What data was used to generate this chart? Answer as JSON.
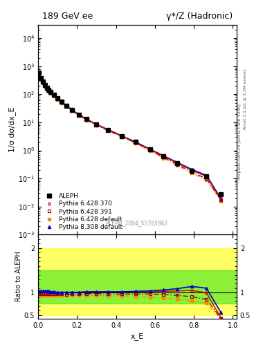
{
  "title_left": "189 GeV ee",
  "title_right": "γ*/Z (Hadronic)",
  "ylabel_main": "1/σ dσ/dx_E",
  "ylabel_ratio": "Ratio to ALEPH",
  "xlabel": "x_E",
  "watermark": "ALEPH_2004_S5765862",
  "right_label_top": "Rivet 3.1.10, ≥ 3.3M events",
  "right_label_bot": "mcplots.cern.ch [arXiv:1306.3436]",
  "xE_data": [
    0.005,
    0.015,
    0.025,
    0.035,
    0.045,
    0.055,
    0.065,
    0.08,
    0.1,
    0.12,
    0.145,
    0.175,
    0.21,
    0.25,
    0.3,
    0.36,
    0.43,
    0.5,
    0.575,
    0.645,
    0.715,
    0.79,
    0.865,
    0.94
  ],
  "aleph_y": [
    600,
    380,
    280,
    215,
    175,
    145,
    120,
    95,
    72,
    55,
    40,
    28,
    19,
    13,
    8.5,
    5.5,
    3.3,
    2.0,
    1.1,
    0.62,
    0.35,
    0.19,
    0.12,
    0.028
  ],
  "pythia6_370_y": [
    560,
    360,
    268,
    205,
    168,
    140,
    116,
    92,
    70,
    53,
    39,
    27.5,
    18.5,
    12.8,
    8.4,
    5.45,
    3.28,
    1.98,
    1.08,
    0.62,
    0.355,
    0.196,
    0.118,
    0.018
  ],
  "pythia6_391_y": [
    540,
    350,
    260,
    198,
    162,
    135,
    112,
    89,
    68,
    51.5,
    37.5,
    26.5,
    18.0,
    12.4,
    8.1,
    5.2,
    3.15,
    1.88,
    1.02,
    0.575,
    0.32,
    0.17,
    0.098,
    0.017
  ],
  "pythia6_def_y": [
    530,
    345,
    255,
    195,
    159,
    132,
    110,
    87,
    66,
    50,
    36.5,
    25.8,
    17.5,
    12.0,
    7.8,
    5.0,
    3.0,
    1.78,
    0.95,
    0.535,
    0.29,
    0.155,
    0.088,
    0.016
  ],
  "pythia8_def_y": [
    570,
    365,
    272,
    208,
    170,
    142,
    118,
    93.5,
    71.5,
    54,
    39.5,
    27.8,
    18.8,
    13.0,
    8.5,
    5.5,
    3.32,
    2.02,
    1.11,
    0.645,
    0.375,
    0.21,
    0.13,
    0.019
  ],
  "ratio_xE": [
    0.005,
    0.015,
    0.025,
    0.035,
    0.045,
    0.055,
    0.065,
    0.08,
    0.1,
    0.12,
    0.145,
    0.175,
    0.21,
    0.25,
    0.3,
    0.36,
    0.43,
    0.5,
    0.575,
    0.645,
    0.715,
    0.79,
    0.865,
    0.94
  ],
  "ratio_pythia6_370": [
    1.02,
    1.02,
    1.01,
    1.01,
    1.01,
    1.01,
    1.0,
    1.0,
    0.99,
    1.0,
    1.0,
    1.01,
    1.01,
    1.02,
    1.02,
    1.02,
    1.02,
    1.02,
    1.02,
    1.03,
    1.04,
    1.05,
    1.0,
    0.43
  ],
  "ratio_pythia6_391": [
    0.97,
    0.97,
    0.97,
    0.97,
    0.97,
    0.97,
    0.97,
    0.97,
    0.97,
    0.97,
    0.96,
    0.97,
    0.97,
    0.98,
    0.98,
    0.97,
    0.97,
    0.97,
    0.97,
    0.96,
    0.94,
    0.91,
    0.85,
    0.43
  ],
  "ratio_pythia6_def": [
    0.96,
    0.96,
    0.95,
    0.95,
    0.95,
    0.95,
    0.95,
    0.95,
    0.94,
    0.94,
    0.94,
    0.94,
    0.94,
    0.95,
    0.94,
    0.93,
    0.93,
    0.92,
    0.9,
    0.88,
    0.85,
    0.82,
    0.77,
    0.41
  ],
  "ratio_pythia8_def": [
    1.03,
    1.03,
    1.03,
    1.03,
    1.03,
    1.03,
    1.02,
    1.02,
    1.01,
    1.01,
    1.01,
    1.01,
    1.01,
    1.02,
    1.02,
    1.02,
    1.02,
    1.03,
    1.04,
    1.06,
    1.09,
    1.14,
    1.1,
    0.55
  ],
  "band_yellow_lo": 0.5,
  "band_yellow_hi": 2.0,
  "band_green_lo": 0.75,
  "band_green_hi": 1.5,
  "color_pythia6_370": "#cc0000",
  "color_pythia6_391": "#990000",
  "color_pythia6_def": "#ff8800",
  "color_pythia8_def": "#0000cc",
  "color_aleph": "#000000",
  "ylim_main_lo": 0.001,
  "ylim_main_hi": 30000.0,
  "ylim_ratio_lo": 0.42,
  "ylim_ratio_hi": 2.3,
  "xlim_lo": 0.0,
  "xlim_hi": 1.02
}
